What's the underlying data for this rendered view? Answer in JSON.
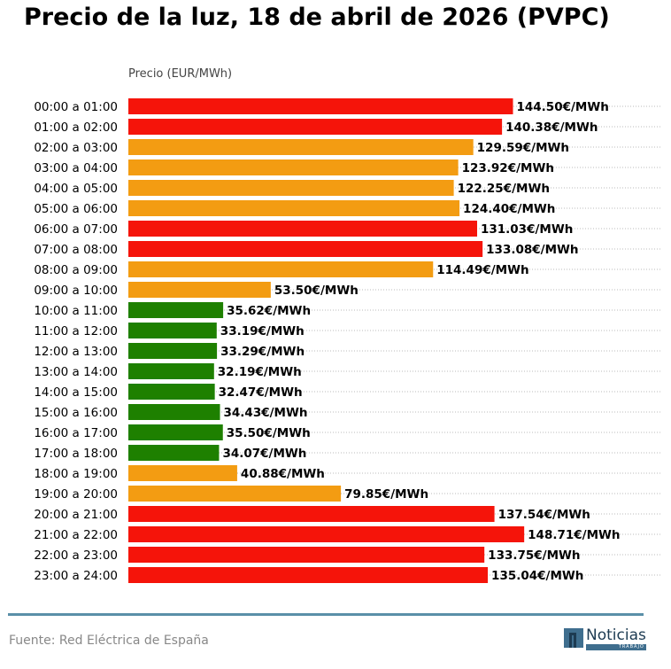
{
  "title": "Precio de la luz, 18 de abril de 2026 (PVPC)",
  "footer": {
    "source": "Fuente: Red Eléctrica de España",
    "logo_name": "Noticias",
    "logo_sub": "TRABAJO"
  },
  "colors": {
    "high": "#f5140a",
    "mid": "#f39c12",
    "low": "#1e8000",
    "grid": "#bbbbbb",
    "footer_line": "#5a8fa8"
  },
  "chart_data": {
    "type": "bar",
    "orientation": "horizontal",
    "title": "Precio de la luz, 18 de abril de 2026 (PVPC)",
    "xlabel": "Precio (EUR/MWh)",
    "ylabel": "",
    "xlim": [
      0,
      170
    ],
    "grid": "horizontal dotted",
    "value_suffix": "€/MWh",
    "categories": [
      "00:00 a 01:00",
      "01:00 a 02:00",
      "02:00 a 03:00",
      "03:00 a 04:00",
      "04:00 a 05:00",
      "05:00 a 06:00",
      "06:00 a 07:00",
      "07:00 a 08:00",
      "08:00 a 09:00",
      "09:00 a 10:00",
      "10:00 a 11:00",
      "11:00 a 12:00",
      "12:00 a 13:00",
      "13:00 a 14:00",
      "14:00 a 15:00",
      "15:00 a 16:00",
      "16:00 a 17:00",
      "17:00 a 18:00",
      "18:00 a 19:00",
      "19:00 a 20:00",
      "20:00 a 21:00",
      "21:00 a 22:00",
      "22:00 a 23:00",
      "23:00 a 24:00"
    ],
    "values": [
      144.5,
      140.38,
      129.59,
      123.92,
      122.25,
      124.4,
      131.03,
      133.08,
      114.49,
      53.5,
      35.62,
      33.19,
      33.29,
      32.19,
      32.47,
      34.43,
      35.5,
      34.07,
      40.88,
      79.85,
      137.54,
      148.71,
      133.75,
      135.04
    ],
    "levels": [
      "high",
      "high",
      "mid",
      "mid",
      "mid",
      "mid",
      "high",
      "high",
      "mid",
      "mid",
      "low",
      "low",
      "low",
      "low",
      "low",
      "low",
      "low",
      "low",
      "mid",
      "mid",
      "high",
      "high",
      "high",
      "high"
    ],
    "value_labels": [
      "144.50€/MWh",
      "140.38€/MWh",
      "129.59€/MWh",
      "123.92€/MWh",
      "122.25€/MWh",
      "124.40€/MWh",
      "131.03€/MWh",
      "133.08€/MWh",
      "114.49€/MWh",
      "53.50€/MWh",
      "35.62€/MWh",
      "33.19€/MWh",
      "33.29€/MWh",
      "32.19€/MWh",
      "32.47€/MWh",
      "34.43€/MWh",
      "35.50€/MWh",
      "34.07€/MWh",
      "40.88€/MWh",
      "79.85€/MWh",
      "137.54€/MWh",
      "148.71€/MWh",
      "133.75€/MWh",
      "135.04€/MWh"
    ]
  }
}
